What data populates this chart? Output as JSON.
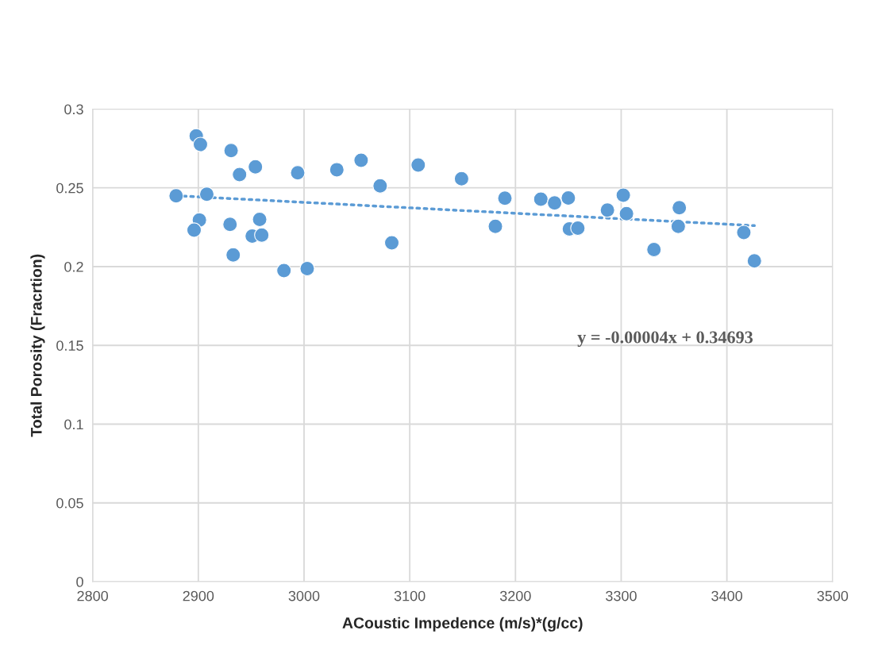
{
  "chart_data": {
    "type": "scatter",
    "xlabel": "ACoustic Impedence (m/s)*(g/cc)",
    "ylabel": "Total Porosity (Fracrtion)",
    "annotations": [
      "y = -0.00004x + 0.34693"
    ],
    "xlim": [
      2800,
      3500
    ],
    "xticks": [
      2800,
      2900,
      3000,
      3100,
      3200,
      3300,
      3400,
      3500
    ],
    "ylim": [
      0,
      0.3
    ],
    "yticks": [
      {
        "value": 0,
        "label": "0"
      },
      0.05,
      0.1,
      0.15,
      0.2,
      0.25,
      0.3
    ],
    "grid": true,
    "marker": "circle",
    "series": [
      {
        "color": "#5b9bd5",
        "x": [
          2879,
          2898,
          2902,
          2908,
          2901,
          2896,
          2931,
          2939,
          2954,
          2930,
          2958,
          2951,
          2960,
          2933,
          2981,
          3003,
          2994,
          3031,
          3054,
          3072,
          3083,
          3108,
          3149,
          3181,
          3190,
          3224,
          3237,
          3250,
          3251,
          3259,
          3287,
          3302,
          3305,
          3331,
          3355,
          3354,
          3416,
          3426
        ],
        "values": [
          0.245,
          0.283,
          0.2775,
          0.246,
          0.2296,
          0.2232,
          0.2737,
          0.2584,
          0.2633,
          0.2268,
          0.23,
          0.2194,
          0.22,
          0.2074,
          0.1975,
          0.1987,
          0.2596,
          0.2615,
          0.2675,
          0.2512,
          0.2151,
          0.2645,
          0.2558,
          0.2256,
          0.2434,
          0.2428,
          0.2404,
          0.2436,
          0.2239,
          0.2244,
          0.2359,
          0.2453,
          0.2336,
          0.2108,
          0.2374,
          0.2256,
          0.2216,
          0.2036
        ]
      },
      {
        "type": "line",
        "color": "#5b9bd5",
        "line_style": "dotted",
        "marker": "none",
        "x": [
          2879,
          3426
        ],
        "values": [
          0.245,
          0.226
        ]
      }
    ]
  }
}
